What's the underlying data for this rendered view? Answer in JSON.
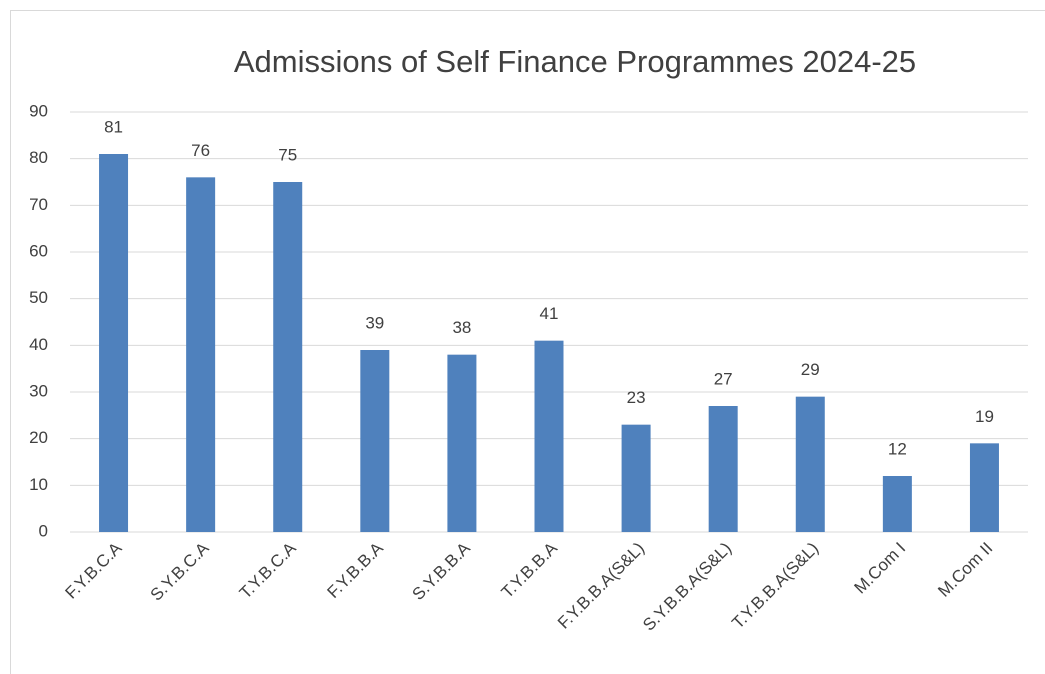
{
  "chart_data": {
    "type": "bar",
    "title": "Admissions of Self Finance Programmes 2024-25",
    "categories": [
      "F.Y.B.C.A",
      "S.Y.B.C.A",
      "T.Y.B.C.A",
      "F.Y.B.B.A",
      "S.Y.B.B.A",
      "T.Y.B.B.A",
      "F.Y.B.B.A(S&L)",
      "S.Y.B.B.A(S&L)",
      "T.Y.B.B.A(S&L)",
      "M.Com I",
      "M.Com II"
    ],
    "values": [
      81,
      76,
      75,
      39,
      38,
      41,
      23,
      27,
      29,
      12,
      19
    ],
    "color": "#4f81bd",
    "ylim": [
      0,
      90
    ],
    "yticks": [
      0,
      10,
      20,
      30,
      40,
      50,
      60,
      70,
      80,
      90
    ],
    "grid": true
  }
}
